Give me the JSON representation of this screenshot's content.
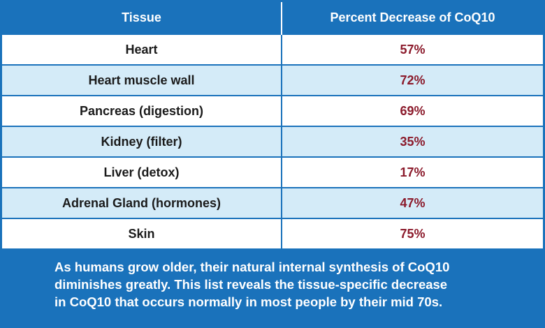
{
  "chart_data": {
    "type": "table",
    "columns": [
      "Tissue",
      "Percent Decrease of CoQ10"
    ],
    "rows": [
      {
        "tissue": "Heart",
        "value": "57%"
      },
      {
        "tissue": "Heart muscle wall",
        "value": "72%"
      },
      {
        "tissue": "Pancreas (digestion)",
        "value": "69%"
      },
      {
        "tissue": "Kidney (filter)",
        "value": "35%"
      },
      {
        "tissue": "Liver (detox)",
        "value": "17%"
      },
      {
        "tissue": "Adrenal Gland (hormones)",
        "value": "47%"
      },
      {
        "tissue": "Skin",
        "value": "75%"
      }
    ],
    "values": [
      57,
      72,
      69,
      35,
      17,
      47,
      75
    ]
  },
  "caption": {
    "lines": [
      "As humans grow older, their natural internal synthesis of CoQ10",
      "diminishes greatly. This list reveals the tissue-specific decrease",
      "in CoQ10 that occurs normally in most people by their mid 70s."
    ]
  },
  "colors": {
    "frame": "#1a72bb",
    "row_alt": "#d4ebf8",
    "value_text": "#8b1a2b"
  }
}
